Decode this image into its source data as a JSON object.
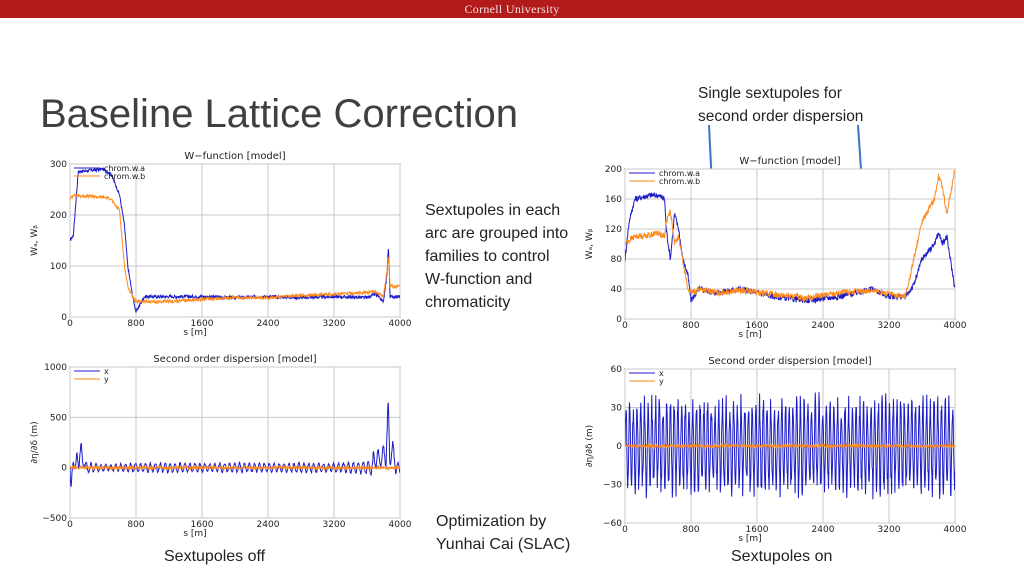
{
  "header": {
    "institution": "Cornell University"
  },
  "slide": {
    "title": "Baseline Lattice Correction",
    "note_top": [
      "Single sextupoles for",
      "second order dispersion"
    ],
    "note_mid": [
      "Sextupoles in each",
      "arc are grouped into",
      "families to control",
      "W-function and",
      "chromaticity"
    ],
    "note_opt": [
      "Optimization by",
      "Yunhai Cai (SLAC)"
    ],
    "caption_left": "Sextupoles off",
    "caption_right": "Sextupoles on"
  },
  "colors": {
    "blue": "#1c1cc8",
    "orange": "#ff8a1c",
    "brand": "#b31b1b",
    "arrow": "#3f74c4"
  },
  "chart_data": [
    {
      "id": "w_off",
      "type": "line",
      "title": "W−function [model]",
      "xlabel": "s [m]",
      "ylabel": "Wₐ, Wᵦ",
      "xlim": [
        0,
        4000
      ],
      "ylim": [
        0,
        300
      ],
      "xticks": [
        "0",
        "800",
        "1600",
        "2400",
        "3200",
        "4000"
      ],
      "yticks": [
        "0",
        "100",
        "200",
        "300"
      ],
      "legend": [
        "chrom.w.a",
        "chrom.w.b"
      ],
      "series": [
        {
          "name": "chrom.w.a",
          "x": [
            0,
            40,
            100,
            400,
            500,
            600,
            660,
            700,
            760,
            800,
            900,
            1200,
            1600,
            2000,
            2400,
            2800,
            3200,
            3600,
            3700,
            3800,
            3840,
            3860,
            3880,
            4000
          ],
          "y": [
            150,
            160,
            285,
            290,
            280,
            240,
            180,
            100,
            40,
            10,
            40,
            40,
            40,
            38,
            40,
            38,
            40,
            38,
            45,
            30,
            80,
            140,
            40,
            40
          ],
          "noise": 3
        },
        {
          "name": "chrom.w.b",
          "x": [
            0,
            40,
            100,
            400,
            500,
            540,
            600,
            660,
            700,
            760,
            800,
            900,
            1200,
            1600,
            2000,
            2400,
            2800,
            3200,
            3600,
            3700,
            3800,
            3840,
            3860,
            3880,
            4000
          ],
          "y": [
            230,
            240,
            238,
            235,
            232,
            220,
            210,
            100,
            60,
            40,
            30,
            30,
            30,
            35,
            38,
            38,
            42,
            45,
            48,
            50,
            40,
            90,
            120,
            60,
            60
          ],
          "noise": 3
        }
      ]
    },
    {
      "id": "w_on",
      "type": "line",
      "title": "W−function [model]",
      "xlabel": "s [m]",
      "ylabel": "Wₐ, Wᵦ",
      "xlim": [
        0,
        4000
      ],
      "ylim": [
        0,
        200
      ],
      "xticks": [
        "0",
        "800",
        "1600",
        "2400",
        "3200",
        "4000"
      ],
      "yticks": [
        "0",
        "40",
        "80",
        "120",
        "160",
        "200"
      ],
      "legend": [
        "chrom.w.a",
        "chrom.w.b"
      ],
      "series": [
        {
          "name": "chrom.w.a",
          "x": [
            0,
            50,
            120,
            300,
            400,
            480,
            500,
            550,
            600,
            650,
            700,
            760,
            800,
            900,
            1100,
            1400,
            1800,
            2200,
            2600,
            3000,
            3200,
            3400,
            3500,
            3600,
            3750,
            3800,
            3850,
            3900,
            4000
          ],
          "y": [
            80,
            130,
            160,
            165,
            165,
            160,
            120,
            80,
            140,
            120,
            80,
            60,
            25,
            40,
            35,
            40,
            30,
            25,
            30,
            40,
            30,
            30,
            45,
            80,
            100,
            115,
            100,
            110,
            40
          ],
          "noise": 4
        },
        {
          "name": "chrom.w.b",
          "x": [
            0,
            50,
            120,
            300,
            400,
            480,
            500,
            550,
            600,
            650,
            700,
            760,
            800,
            900,
            1100,
            1400,
            1800,
            2200,
            2600,
            3000,
            3200,
            3400,
            3500,
            3600,
            3750,
            3800,
            3850,
            3900,
            4000
          ],
          "y": [
            100,
            105,
            110,
            112,
            115,
            110,
            130,
            145,
            100,
            110,
            80,
            40,
            35,
            40,
            35,
            38,
            33,
            28,
            35,
            38,
            33,
            30,
            80,
            130,
            160,
            190,
            175,
            140,
            200
          ],
          "noise": 4
        }
      ]
    },
    {
      "id": "d_off",
      "type": "line",
      "title": "Second order dispersion [model]",
      "xlabel": "s [m]",
      "ylabel": "∂η/∂δ (m)",
      "xlim": [
        0,
        4000
      ],
      "ylim": [
        -500,
        1000
      ],
      "xticks": [
        "0",
        "800",
        "1600",
        "2400",
        "3200",
        "4000"
      ],
      "yticks": [
        "−500",
        "0",
        "500",
        "1000"
      ],
      "legend": [
        "x",
        "y"
      ],
      "series": [
        {
          "name": "x",
          "x": [
            0,
            40,
            100,
            200,
            400,
            800,
            1200,
            1600,
            2000,
            2400,
            2800,
            3200,
            3600,
            3800,
            3860,
            3900,
            3960
          ],
          "y": [
            -480,
            -100,
            300,
            100,
            60,
            80,
            90,
            80,
            90,
            80,
            90,
            80,
            120,
            200,
            700,
            300,
            100
          ],
          "noise": 0,
          "osc": 0.55,
          "period": 60
        },
        {
          "name": "y",
          "x": [
            0,
            4000
          ],
          "y": [
            0,
            0
          ],
          "noise": 15
        }
      ]
    },
    {
      "id": "d_on",
      "type": "line",
      "title": "Second order dispersion [model]",
      "xlabel": "s [m]",
      "ylabel": "∂η/∂δ (m)",
      "xlim": [
        0,
        4000
      ],
      "ylim": [
        -60,
        60
      ],
      "xticks": [
        "0",
        "800",
        "1600",
        "2400",
        "3200",
        "4000"
      ],
      "yticks": [
        "−60",
        "−30",
        "0",
        "30",
        "60"
      ],
      "legend": [
        "x",
        "y"
      ],
      "series": [
        {
          "name": "x",
          "x": [
            0,
            400,
            800,
            1200,
            1600,
            2000,
            2400,
            2800,
            3200,
            3600,
            4000
          ],
          "y": [
            0,
            0,
            0,
            0,
            0,
            0,
            0,
            0,
            0,
            0,
            0
          ],
          "noise": 0,
          "amp": 35,
          "period": 45
        },
        {
          "name": "y",
          "x": [
            0,
            4000
          ],
          "y": [
            0,
            0
          ],
          "noise": 1.2
        }
      ]
    }
  ]
}
